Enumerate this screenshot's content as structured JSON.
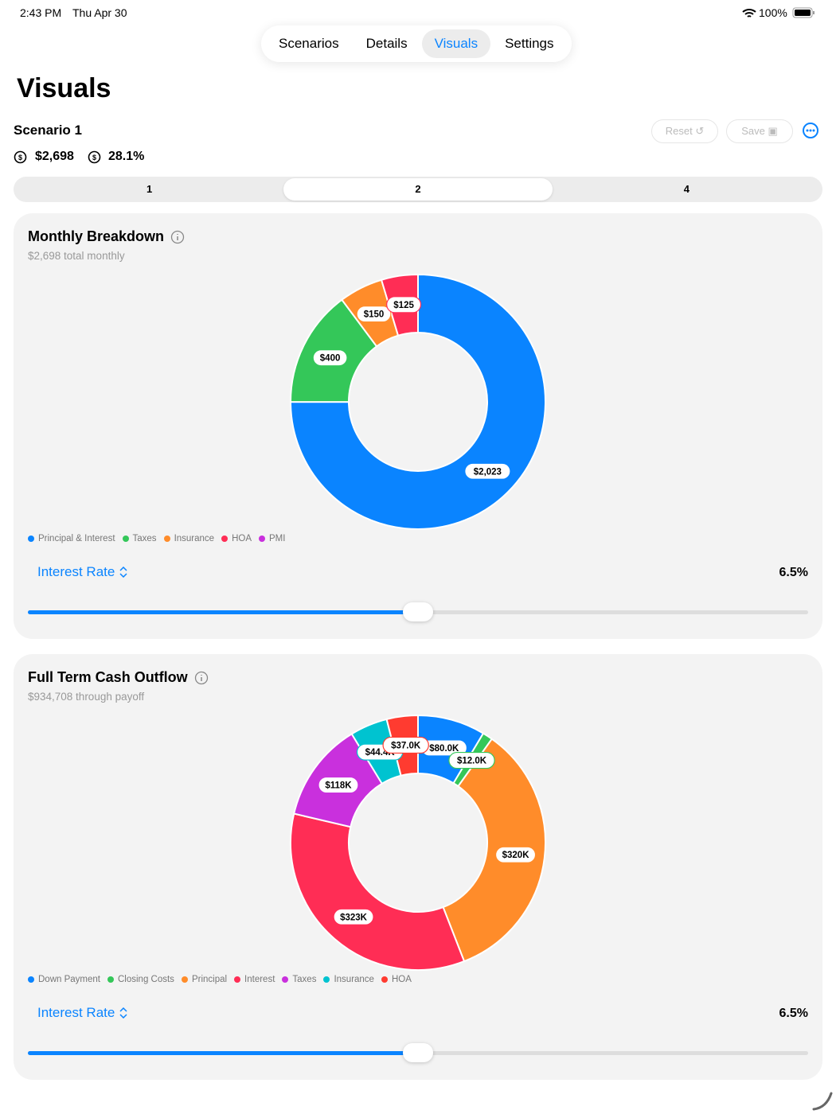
{
  "status_bar": {
    "time": "2:43 PM",
    "date": "Thu Apr 30",
    "battery": "100%"
  },
  "tabs": {
    "items": [
      "Scenarios",
      "Details",
      "Visuals",
      "Settings"
    ],
    "selected_index": 2
  },
  "header": {
    "title": "Visuals"
  },
  "scenario": {
    "name": "Scenario 1",
    "reset": "Reset",
    "save": "Save",
    "monthly": "$2,698",
    "ratio": "28.1%"
  },
  "segments": {
    "items": [
      "1",
      "2",
      "4"
    ],
    "selected_index": 1
  },
  "chart_data": [
    {
      "type": "donut",
      "title": "Monthly Breakdown",
      "subtitle": "$2,698 total monthly",
      "categories": [
        "Principal & Interest",
        "Taxes",
        "Insurance",
        "HOA",
        "PMI"
      ],
      "values": [
        2023,
        400,
        150,
        125,
        0
      ],
      "value_labels": [
        "$2,023",
        "$400",
        "$150",
        "$125",
        null
      ],
      "colors": [
        "#0a84ff",
        "#34c759",
        "#ff8c2a",
        "#ff2d55",
        "#c930dd"
      ],
      "control": {
        "label": "Interest Rate",
        "value": "6.5%"
      }
    },
    {
      "type": "donut",
      "title": "Full Term Cash Outflow",
      "subtitle": "$934,708 through payoff",
      "categories": [
        "Down Payment",
        "Closing Costs",
        "Principal",
        "Interest",
        "Taxes",
        "Insurance",
        "HOA"
      ],
      "values": [
        80000,
        12000,
        320000,
        323000,
        118000,
        44400,
        37000
      ],
      "value_labels": [
        "$80.0K",
        "$12.0K",
        "$320K",
        "$323K",
        "$118K",
        "$44.4K",
        "$37.0K"
      ],
      "colors": [
        "#0a84ff",
        "#34c759",
        "#ff8c2a",
        "#ff2d55",
        "#c930dd",
        "#00c3d0",
        "#ff3b30"
      ],
      "control": {
        "label": "Interest Rate",
        "value": "6.5%"
      }
    }
  ]
}
